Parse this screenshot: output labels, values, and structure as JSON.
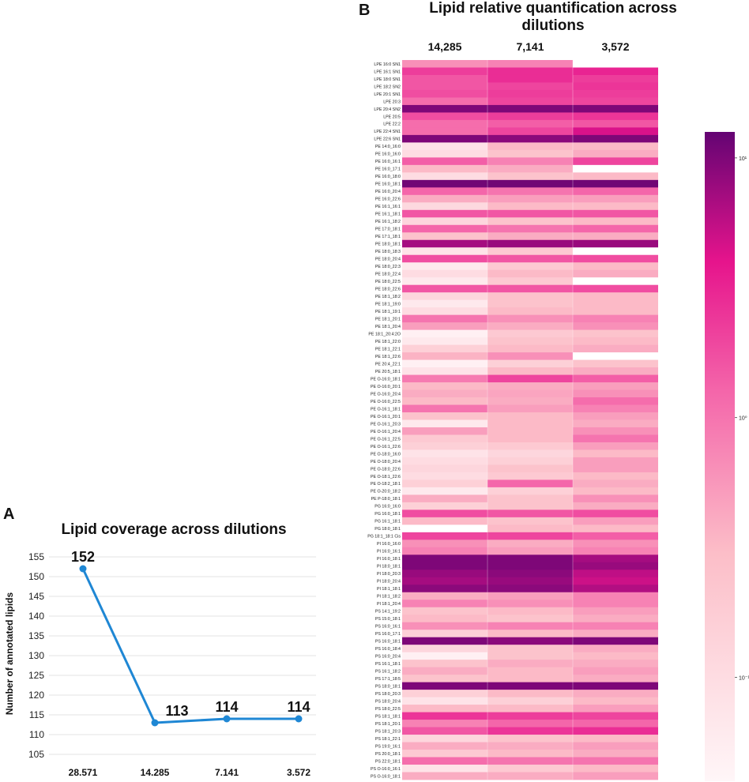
{
  "panel_a": {
    "letter": "A",
    "chart_data": {
      "type": "line",
      "title": "Lipid coverage across dilutions",
      "xlabel": "",
      "ylabel": "Number of annotated lipids",
      "categories": [
        "28.571",
        "14.285",
        "7.141",
        "3.572"
      ],
      "values": [
        152,
        113,
        114,
        114
      ],
      "data_labels": [
        "152",
        "113",
        "114",
        "114"
      ],
      "yticks": [
        105,
        110,
        115,
        120,
        125,
        130,
        135,
        140,
        145,
        150,
        155
      ],
      "ylim": [
        103,
        158
      ],
      "grid": true,
      "line_color": "#1f87d4"
    }
  },
  "panel_b": {
    "letter": "B",
    "chart_data": {
      "type": "heatmap",
      "title_line1": "Lipid relative quantification across",
      "title_line2": "dilutions",
      "columns": [
        "14,285",
        "7,141",
        "3,572"
      ],
      "colorbar": {
        "scale": "log",
        "ticks": [
          "10¹",
          "10⁰",
          "10⁻¹"
        ],
        "tick_log_values": [
          1,
          0,
          -1
        ],
        "range_log": [
          -1.4,
          1.1
        ]
      },
      "rows": [
        "LPE 16:0 SN1",
        "LPE 16:1 SN1",
        "LPE 18:0 SN1",
        "LPE 18:2 SN2",
        "LPE 20:1 SN1",
        "LPE 20:3",
        "LPE 20:4 SN2",
        "LPE 20:5",
        "LPE 22:2",
        "LPE 22:4 SN1",
        "LPE 22:6 SN1",
        "PE 14:0_16:0",
        "PE 16:0_16:0",
        "PE 16:0_16:1",
        "PE 16:0_17:1",
        "PE 16:0_18:0",
        "PE 16:0_18:1",
        "PE 16:0_20:4",
        "PE 16:0_22:6",
        "PE 16:1_16:1",
        "PE 16:1_18:1",
        "PE 16:1_18:2",
        "PE 17:0_18:1",
        "PE 17:1_18:1",
        "PE 18:0_18:1",
        "PE 18:0_18:3",
        "PE 18:0_20:4",
        "PE 18:0_22:3",
        "PE 18:0_22:4",
        "PE 18:0_22:5",
        "PE 18:0_22:6",
        "PE 18:1_18:2",
        "PE 18:1_19:0",
        "PE 18:1_19:1",
        "PE 18:1_20:1",
        "PE 18:1_20:4",
        "PE 18:1_20:4:2O",
        "PE 18:1_22:0",
        "PE 18:1_22:1",
        "PE 18:1_22:6",
        "PE 20:4_22:1",
        "PE 20:5_18:1",
        "PE O-16:0_18:1",
        "PE O-16:0_20:1",
        "PE O-16:0_20:4",
        "PE O-16:0_22:5",
        "PE O-16:1_18:1",
        "PE O-16:1_20:1",
        "PE O-16:1_20:3",
        "PE O-16:1_20:4",
        "PE O-16:1_22:5",
        "PE O-16:1_22:6",
        "PE O-18:0_16:0",
        "PE O-18:0_20:4",
        "PE O-18:0_22:6",
        "PE O-18:1_22:6",
        "PE O-18:2_18:1",
        "PE O-20:0_18:2",
        "PE P-18:0_18:1",
        "PG 16:0_16:0",
        "PG 16:0_18:1",
        "PG 16:1_18:1",
        "PG 18:0_18:1",
        "PG 18:1_18:1 Cis",
        "PI 16:0_16:0",
        "PI 16:0_16:1",
        "PI 16:0_18:1",
        "PI 18:0_18:1",
        "PI 18:0_20:3",
        "PI 18:0_20:4",
        "PI 18:1_18:1",
        "PI 18:1_18:2",
        "PI 18:1_20:4",
        "PS 14:1_19:2",
        "PS 15:0_18:1",
        "PS 16:0_16:1",
        "PS 16:0_17:1",
        "PS 16:0_18:1",
        "PS 16:0_18:4",
        "PS 16:0_20:4",
        "PS 16:1_18:1",
        "PS 16:1_18:2",
        "PS 17:1_18:5",
        "PS 18:0_18:1",
        "PS 18:0_20:3",
        "PS 18:0_20:4",
        "PS 18:0_22:5",
        "PS 18:1_18:1",
        "PS 18:1_20:1",
        "PS 18:1_20:3",
        "PS 18:1_22:1",
        "PS 19:0_16:1",
        "PS 20:0_18:1",
        "PS 22:0_18:1",
        "PS O-16:0_16:1",
        "PS O-16:0_18:1"
      ],
      "values_log10": [
        [
          -0.2,
          -0.1,
          null
        ],
        [
          0.35,
          0.45,
          0.5
        ],
        [
          0.2,
          0.45,
          0.35
        ],
        [
          0.2,
          0.3,
          0.4
        ],
        [
          0.25,
          0.35,
          0.35
        ],
        [
          0.05,
          0.3,
          0.3
        ],
        [
          1.0,
          1.0,
          1.0
        ],
        [
          0.25,
          0.35,
          0.4
        ],
        [
          0.05,
          0.15,
          0.2
        ],
        [
          0.05,
          0.3,
          0.65
        ],
        [
          1.0,
          0.95,
          1.0
        ],
        [
          -1.1,
          -0.5,
          -0.5
        ],
        [
          -1.0,
          -0.6,
          -0.4
        ],
        [
          0.15,
          -0.1,
          0.3
        ],
        [
          -0.5,
          -0.4,
          null
        ],
        [
          -1.0,
          -0.6,
          -0.5
        ],
        [
          1.05,
          1.05,
          1.05
        ],
        [
          0.1,
          0.0,
          0.1
        ],
        [
          -0.4,
          -0.3,
          -0.3
        ],
        [
          -0.95,
          -0.5,
          -0.5
        ],
        [
          0.2,
          0.2,
          0.2
        ],
        [
          -0.9,
          -0.6,
          -0.5
        ],
        [
          0.1,
          0.0,
          0.1
        ],
        [
          -0.6,
          -0.4,
          -0.4
        ],
        [
          0.85,
          0.9,
          0.9
        ],
        [
          -1.1,
          -0.7,
          null
        ],
        [
          0.25,
          0.2,
          0.25
        ],
        [
          -1.2,
          -0.7,
          -0.5
        ],
        [
          -1.0,
          -0.5,
          -0.4
        ],
        [
          -1.2,
          -0.7,
          null
        ],
        [
          0.2,
          0.2,
          0.25
        ],
        [
          -0.9,
          -0.6,
          -0.5
        ],
        [
          -1.2,
          -0.6,
          -0.5
        ],
        [
          -1.0,
          -0.5,
          -0.5
        ],
        [
          0.0,
          -0.2,
          -0.1
        ],
        [
          -0.3,
          -0.4,
          -0.2
        ],
        [
          -1.3,
          -0.7,
          -0.6
        ],
        [
          -1.2,
          -0.6,
          -0.5
        ],
        [
          -0.8,
          -0.5,
          -0.4
        ],
        [
          -0.45,
          -0.2,
          null
        ],
        [
          -1.3,
          -0.8,
          -0.6
        ],
        [
          -1.1,
          -0.5,
          -0.4
        ],
        [
          -0.05,
          0.3,
          0.15
        ],
        [
          -0.5,
          -0.4,
          -0.3
        ],
        [
          -0.4,
          -0.35,
          -0.2
        ],
        [
          -0.5,
          -0.4,
          0.05
        ],
        [
          0.0,
          -0.3,
          -0.1
        ],
        [
          -0.6,
          -0.5,
          -0.3
        ],
        [
          -1.2,
          -0.5,
          -0.4
        ],
        [
          -0.3,
          -0.5,
          -0.2
        ],
        [
          -0.7,
          -0.5,
          0.0
        ],
        [
          -0.8,
          -0.7,
          -0.3
        ],
        [
          -1.1,
          -0.9,
          -0.5
        ],
        [
          -1.0,
          -0.8,
          -0.3
        ],
        [
          -0.9,
          -0.6,
          -0.3
        ],
        [
          -1.0,
          -0.7,
          -0.5
        ],
        [
          -0.8,
          0.1,
          -0.4
        ],
        [
          -1.2,
          -0.8,
          -0.5
        ],
        [
          -0.4,
          -0.6,
          -0.2
        ],
        [
          -0.8,
          -0.6,
          -0.4
        ],
        [
          0.25,
          0.2,
          0.25
        ],
        [
          -0.5,
          -0.6,
          -0.3
        ],
        [
          null,
          -0.5,
          -0.5
        ],
        [
          0.3,
          0.3,
          0.15
        ],
        [
          -0.2,
          -0.4,
          -0.2
        ],
        [
          -0.1,
          -0.3,
          -0.1
        ],
        [
          1.0,
          1.0,
          0.85
        ],
        [
          1.0,
          1.0,
          0.9
        ],
        [
          0.9,
          0.95,
          0.75
        ],
        [
          0.85,
          0.9,
          0.7
        ],
        [
          0.95,
          0.95,
          0.8
        ],
        [
          -0.4,
          -0.3,
          -0.1
        ],
        [
          -0.1,
          -0.2,
          -0.1
        ],
        [
          -0.6,
          -0.5,
          -0.3
        ],
        [
          -0.5,
          -0.6,
          -0.4
        ],
        [
          -0.2,
          -0.1,
          -0.1
        ],
        [
          -0.8,
          -0.5,
          -0.4
        ],
        [
          1.0,
          0.95,
          1.0
        ],
        [
          -0.9,
          -0.6,
          -0.4
        ],
        [
          -1.3,
          -0.6,
          -0.5
        ],
        [
          -0.6,
          -0.4,
          -0.4
        ],
        [
          -0.4,
          -0.5,
          -0.3
        ],
        [
          -0.6,
          -0.5,
          -0.4
        ],
        [
          1.0,
          1.0,
          1.0
        ],
        [
          -0.8,
          -0.5,
          -0.4
        ],
        [
          -1.1,
          -0.8,
          -0.5
        ],
        [
          -0.5,
          -0.5,
          -0.3
        ],
        [
          0.4,
          0.35,
          0.3
        ],
        [
          -0.1,
          0.1,
          0.1
        ],
        [
          0.2,
          0.4,
          0.45
        ],
        [
          -0.9,
          -0.6,
          -0.5
        ],
        [
          -0.4,
          -0.4,
          -0.3
        ],
        [
          -0.7,
          -0.5,
          -0.4
        ],
        [
          0.05,
          0.0,
          0.0
        ],
        [
          -1.1,
          -0.7,
          -0.5
        ],
        [
          -0.4,
          -0.4,
          -0.3
        ]
      ]
    }
  }
}
